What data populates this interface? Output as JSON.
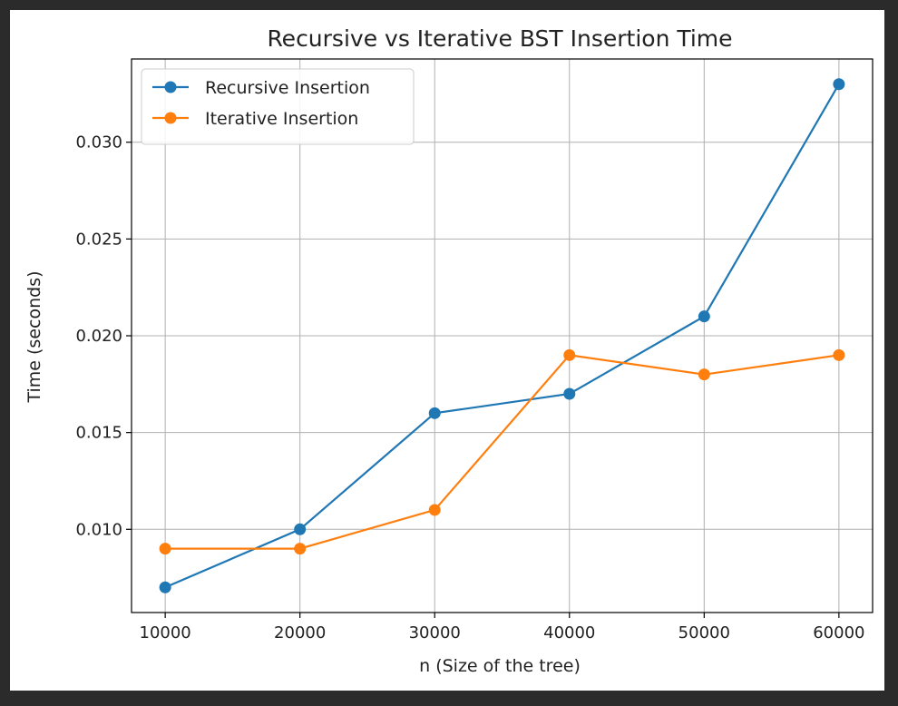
{
  "chart_data": {
    "type": "line",
    "title": "Recursive vs Iterative BST Insertion Time",
    "xlabel": "n (Size of the tree)",
    "ylabel": "Time (seconds)",
    "x": [
      10000,
      20000,
      30000,
      40000,
      50000,
      60000
    ],
    "x_ticks": [
      10000,
      20000,
      30000,
      40000,
      50000,
      60000
    ],
    "y_ticks": [
      0.01,
      0.015,
      0.02,
      0.025,
      0.03
    ],
    "xlim": [
      7500,
      62500
    ],
    "ylim": [
      0.0057,
      0.0343
    ],
    "grid": true,
    "legend_position": "top-left",
    "series": [
      {
        "name": "Recursive Insertion",
        "color": "#1f77b4",
        "marker": "circle",
        "values": [
          0.007,
          0.01,
          0.016,
          0.017,
          0.021,
          0.033
        ]
      },
      {
        "name": "Iterative Insertion",
        "color": "#ff7f0e",
        "marker": "circle",
        "values": [
          0.009,
          0.009,
          0.011,
          0.019,
          0.018,
          0.019
        ]
      }
    ]
  }
}
